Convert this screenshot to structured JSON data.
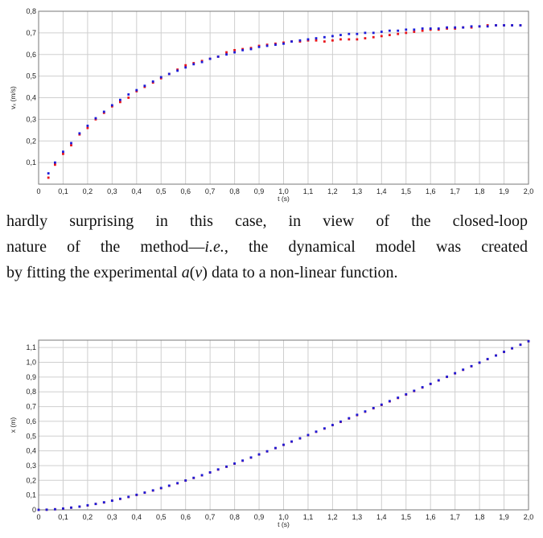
{
  "paragraph": {
    "line1": "hardly surprising in this case, in view of the closed-loop",
    "line2_a": "nature of the method—",
    "line2_ie": "i.e.",
    "line2_b": ", the dynamical model was created",
    "line3_a": "by fitting the experimental ",
    "line3_a_sym": "a",
    "line3_paren_open": "(",
    "line3_v_sym": "v",
    "line3_b": ") data to a non-linear function."
  },
  "colors": {
    "series_a": "#e8141c",
    "series_b": "#1c1cd8",
    "grid": "#cfcfcf",
    "frame": "#777777"
  },
  "chart_data": [
    {
      "type": "scatter",
      "xlabel": "t (s)",
      "ylabel": "vₓ (m/s)",
      "xlim": [
        0,
        2.0
      ],
      "ylim": [
        0,
        0.8
      ],
      "grid": true,
      "x_ticks": [
        "0",
        "0,1",
        "0,2",
        "0,3",
        "0,4",
        "0,5",
        "0,6",
        "0,7",
        "0,8",
        "0,9",
        "1,0",
        "1,1",
        "1,2",
        "1,3",
        "1,4",
        "1,5",
        "1,6",
        "1,7",
        "1,8",
        "1,9",
        "2,0"
      ],
      "y_ticks": [
        "0,1",
        "0,2",
        "0,3",
        "0,4",
        "0,5",
        "0,6",
        "0,7",
        "0,8"
      ],
      "series": [
        {
          "color": "#e8141c",
          "x": [
            0.04,
            0.067,
            0.1,
            0.133,
            0.167,
            0.2,
            0.233,
            0.267,
            0.3,
            0.333,
            0.367,
            0.4,
            0.433,
            0.467,
            0.5,
            0.533,
            0.567,
            0.6,
            0.633,
            0.667,
            0.7,
            0.733,
            0.767,
            0.8,
            0.833,
            0.867,
            0.9,
            0.933,
            0.967,
            1.0,
            1.033,
            1.067,
            1.1,
            1.133,
            1.167,
            1.2,
            1.233,
            1.267,
            1.3,
            1.333,
            1.367,
            1.4,
            1.433,
            1.467,
            1.5,
            1.533,
            1.567,
            1.6,
            1.633,
            1.667,
            1.7,
            1.733,
            1.767,
            1.8,
            1.833,
            1.867,
            1.9,
            1.933,
            1.967
          ],
          "y": [
            0.03,
            0.09,
            0.14,
            0.18,
            0.23,
            0.26,
            0.3,
            0.33,
            0.36,
            0.38,
            0.4,
            0.43,
            0.45,
            0.47,
            0.49,
            0.51,
            0.53,
            0.55,
            0.56,
            0.57,
            0.58,
            0.59,
            0.61,
            0.62,
            0.625,
            0.63,
            0.64,
            0.645,
            0.65,
            0.655,
            0.66,
            0.66,
            0.665,
            0.665,
            0.66,
            0.665,
            0.67,
            0.67,
            0.67,
            0.675,
            0.68,
            0.685,
            0.69,
            0.695,
            0.7,
            0.705,
            0.71,
            0.715,
            0.715,
            0.72,
            0.72,
            0.725,
            0.725,
            0.73,
            0.735,
            0.735,
            0.735,
            0.735,
            0.735
          ]
        },
        {
          "color": "#1c1cd8",
          "x": [
            0.04,
            0.067,
            0.1,
            0.133,
            0.167,
            0.2,
            0.233,
            0.267,
            0.3,
            0.333,
            0.367,
            0.4,
            0.433,
            0.467,
            0.5,
            0.533,
            0.567,
            0.6,
            0.633,
            0.667,
            0.7,
            0.733,
            0.767,
            0.8,
            0.833,
            0.867,
            0.9,
            0.933,
            0.967,
            1.0,
            1.033,
            1.067,
            1.1,
            1.133,
            1.167,
            1.2,
            1.233,
            1.267,
            1.3,
            1.333,
            1.367,
            1.4,
            1.433,
            1.467,
            1.5,
            1.533,
            1.567,
            1.6,
            1.633,
            1.667,
            1.7,
            1.733,
            1.767,
            1.8,
            1.833,
            1.867,
            1.9,
            1.933,
            1.967
          ],
          "y": [
            0.05,
            0.1,
            0.15,
            0.19,
            0.235,
            0.27,
            0.305,
            0.335,
            0.365,
            0.39,
            0.415,
            0.435,
            0.455,
            0.475,
            0.495,
            0.51,
            0.525,
            0.54,
            0.555,
            0.565,
            0.58,
            0.59,
            0.6,
            0.61,
            0.62,
            0.625,
            0.635,
            0.64,
            0.645,
            0.65,
            0.66,
            0.665,
            0.67,
            0.675,
            0.68,
            0.685,
            0.69,
            0.695,
            0.695,
            0.7,
            0.7,
            0.705,
            0.71,
            0.71,
            0.715,
            0.715,
            0.72,
            0.72,
            0.72,
            0.725,
            0.725,
            0.725,
            0.73,
            0.73,
            0.73,
            0.735,
            0.735,
            0.735,
            0.735
          ]
        }
      ]
    },
    {
      "type": "scatter",
      "xlabel": "t (s)",
      "ylabel": "x (m)",
      "xlim": [
        0,
        2.0
      ],
      "ylim": [
        0,
        1.15
      ],
      "grid": true,
      "x_ticks": [
        "0",
        "0,1",
        "0,2",
        "0,3",
        "0,4",
        "0,5",
        "0,6",
        "0,7",
        "0,8",
        "0,9",
        "1,0",
        "1,1",
        "1,2",
        "1,3",
        "1,4",
        "1,5",
        "1,6",
        "1,7",
        "1,8",
        "1,9",
        "2,0"
      ],
      "y_ticks": [
        "0",
        "0,1",
        "0,2",
        "0,3",
        "0,4",
        "0,5",
        "0,6",
        "0,7",
        "0,8",
        "0,9",
        "1,0",
        "1,1"
      ],
      "series": [
        {
          "color": "#e8141c",
          "x": [
            0.0,
            0.033,
            0.067,
            0.1,
            0.133,
            0.167,
            0.2,
            0.233,
            0.267,
            0.3,
            0.333,
            0.367,
            0.4,
            0.433,
            0.467,
            0.5,
            0.533,
            0.567,
            0.6,
            0.633,
            0.667,
            0.7,
            0.733,
            0.767,
            0.8,
            0.833,
            0.867,
            0.9,
            0.933,
            0.967,
            1.0,
            1.033,
            1.067,
            1.1,
            1.133,
            1.167,
            1.2,
            1.233,
            1.267,
            1.3,
            1.333,
            1.367,
            1.4,
            1.433,
            1.467,
            1.5,
            1.533,
            1.567,
            1.6,
            1.633,
            1.667,
            1.7,
            1.733,
            1.767,
            1.8,
            1.833,
            1.867,
            1.9,
            1.933,
            1.967,
            2.0
          ],
          "y": [
            0.0,
            0.001,
            0.004,
            0.009,
            0.015,
            0.022,
            0.03,
            0.04,
            0.05,
            0.062,
            0.074,
            0.087,
            0.101,
            0.116,
            0.131,
            0.147,
            0.163,
            0.18,
            0.198,
            0.216,
            0.234,
            0.253,
            0.273,
            0.292,
            0.313,
            0.333,
            0.354,
            0.375,
            0.396,
            0.418,
            0.44,
            0.462,
            0.484,
            0.506,
            0.529,
            0.551,
            0.574,
            0.596,
            0.619,
            0.642,
            0.665,
            0.688,
            0.711,
            0.735,
            0.758,
            0.781,
            0.805,
            0.829,
            0.853,
            0.877,
            0.901,
            0.925,
            0.949,
            0.973,
            0.997,
            1.021,
            1.046,
            1.07,
            1.094,
            1.119,
            1.143
          ]
        },
        {
          "color": "#1c1cd8",
          "x": [
            0.0,
            0.033,
            0.067,
            0.1,
            0.133,
            0.167,
            0.2,
            0.233,
            0.267,
            0.3,
            0.333,
            0.367,
            0.4,
            0.433,
            0.467,
            0.5,
            0.533,
            0.567,
            0.6,
            0.633,
            0.667,
            0.7,
            0.733,
            0.767,
            0.8,
            0.833,
            0.867,
            0.9,
            0.933,
            0.967,
            1.0,
            1.033,
            1.067,
            1.1,
            1.133,
            1.167,
            1.2,
            1.233,
            1.267,
            1.3,
            1.333,
            1.367,
            1.4,
            1.433,
            1.467,
            1.5,
            1.533,
            1.567,
            1.6,
            1.633,
            1.667,
            1.7,
            1.733,
            1.767,
            1.8,
            1.833,
            1.867,
            1.9,
            1.933,
            1.967,
            2.0
          ],
          "y": [
            0.0,
            0.001,
            0.004,
            0.009,
            0.015,
            0.022,
            0.031,
            0.04,
            0.051,
            0.062,
            0.075,
            0.088,
            0.102,
            0.117,
            0.132,
            0.148,
            0.164,
            0.181,
            0.199,
            0.217,
            0.235,
            0.254,
            0.274,
            0.293,
            0.314,
            0.334,
            0.355,
            0.376,
            0.397,
            0.419,
            0.441,
            0.463,
            0.485,
            0.507,
            0.53,
            0.552,
            0.575,
            0.598,
            0.621,
            0.644,
            0.667,
            0.69,
            0.713,
            0.737,
            0.76,
            0.783,
            0.807,
            0.831,
            0.854,
            0.878,
            0.902,
            0.926,
            0.95,
            0.974,
            0.998,
            1.022,
            1.046,
            1.071,
            1.095,
            1.119,
            1.143
          ]
        }
      ]
    }
  ]
}
